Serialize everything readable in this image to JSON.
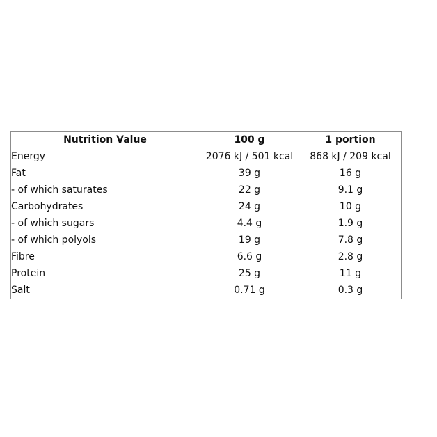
{
  "table": {
    "headers": [
      "Nutrition Value",
      "100 g",
      "1 portion"
    ],
    "rows": [
      {
        "label": "Energy",
        "per100": "2076 kJ / 501 kcal",
        "portion": "868 kJ / 209 kcal"
      },
      {
        "label": "Fat",
        "per100": "39 g",
        "portion": "16 g"
      },
      {
        "label": "- of which saturates",
        "per100": "22 g",
        "portion": "9.1 g"
      },
      {
        "label": "Carbohydrates",
        "per100": "24 g",
        "portion": "10 g"
      },
      {
        "label": "- of which sugars",
        "per100": "4.4 g",
        "portion": "1.9 g"
      },
      {
        "label": "- of which polyols",
        "per100": "19 g",
        "portion": "7.8 g"
      },
      {
        "label": "Fibre",
        "per100": "6.6 g",
        "portion": "2.8 g"
      },
      {
        "label": "Protein",
        "per100": "25 g",
        "portion": "11 g"
      },
      {
        "label": "Salt",
        "per100": "0.71 g",
        "portion": "0.3 g"
      }
    ]
  }
}
